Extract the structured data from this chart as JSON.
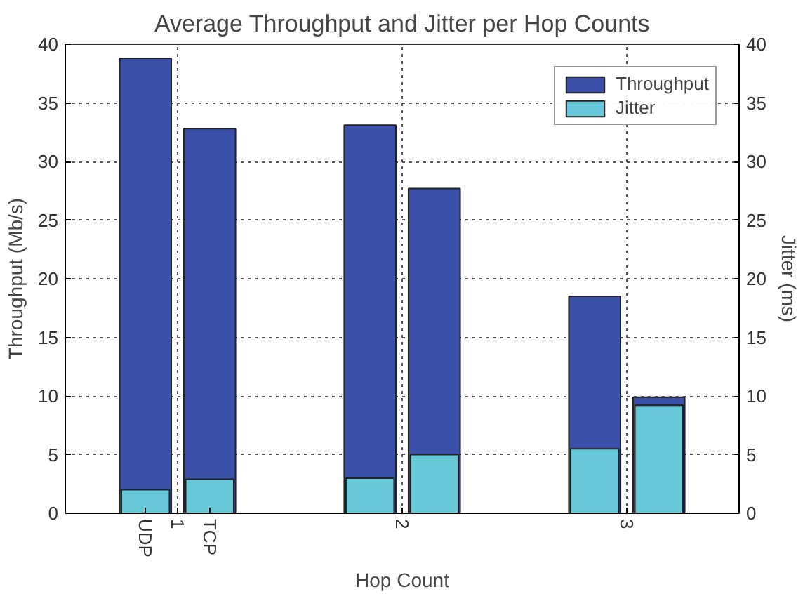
{
  "chart_data": {
    "type": "bar",
    "title": "Average Throughput and Jitter per Hop Counts",
    "xlabel": "Hop Count",
    "ylabel": "Throughput (Mb/s)",
    "y2label": "Jitter (ms)",
    "x": [
      0.857,
      1.143,
      1.857,
      2.143,
      2.857,
      3.143
    ],
    "series": [
      {
        "name": "Throughput",
        "color": "#3a4fa8",
        "values": [
          38.8,
          32.8,
          33.1,
          27.7,
          18.5,
          9.9
        ]
      },
      {
        "name": "Jitter",
        "color": "#66c8d8",
        "axis": "y2",
        "values": [
          2.0,
          2.9,
          3.0,
          5.0,
          5.5,
          9.2
        ]
      }
    ],
    "xlim": [
      0.5,
      3.5
    ],
    "xticks": [
      {
        "value": 0.857,
        "label": "UDP"
      },
      1,
      {
        "value": 1.143,
        "label": "TCP"
      },
      2,
      3
    ],
    "ylim": [
      0,
      40
    ],
    "yticks": [
      0,
      5,
      10,
      15,
      20,
      25,
      30,
      35,
      40
    ],
    "y2lim": [
      0,
      40
    ],
    "y2ticks": [
      0,
      5,
      10,
      15,
      20,
      25,
      30,
      35,
      40
    ],
    "grid": true,
    "legend": "top right"
  }
}
